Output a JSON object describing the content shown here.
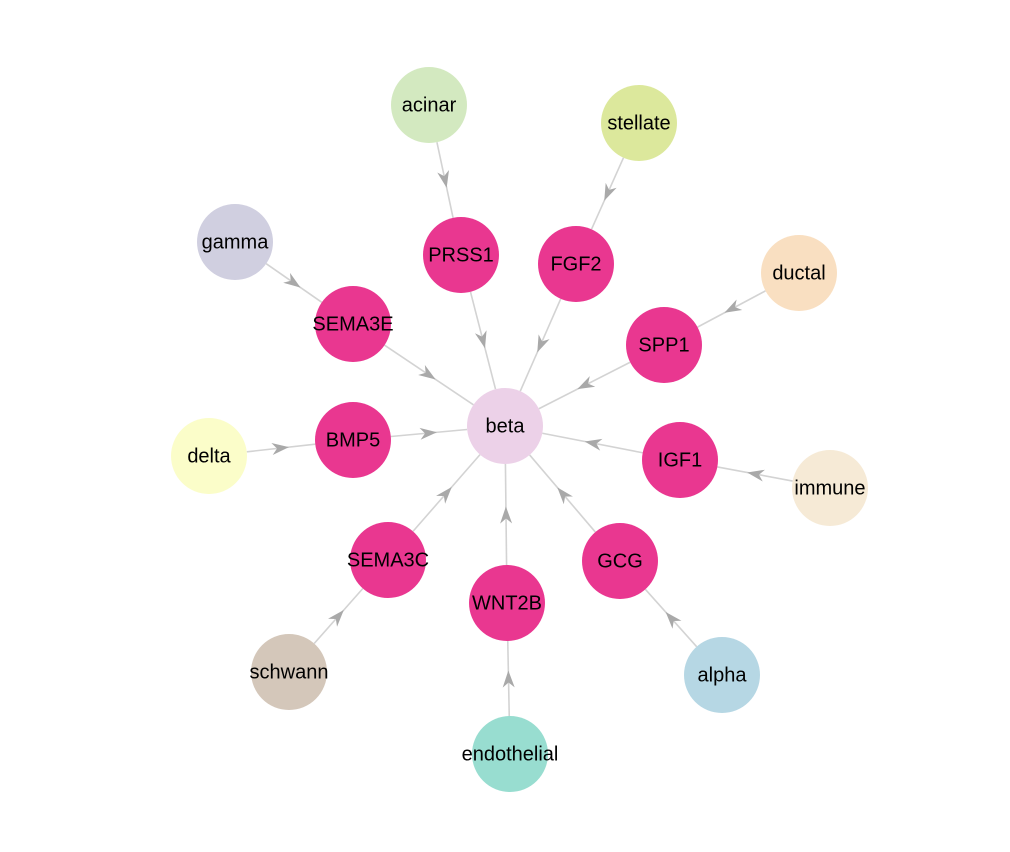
{
  "graph": {
    "type": "cell-communication-network",
    "center": "beta",
    "nodes": [
      {
        "id": "beta",
        "label": "beta",
        "kind": "cell",
        "color": "#ecd1e8"
      },
      {
        "id": "acinar",
        "label": "acinar",
        "kind": "cell",
        "color": "#d3e9c0"
      },
      {
        "id": "stellate",
        "label": "stellate",
        "kind": "cell",
        "color": "#dce89c"
      },
      {
        "id": "ductal",
        "label": "ductal",
        "kind": "cell",
        "color": "#f9dfc1"
      },
      {
        "id": "immune",
        "label": "immune",
        "kind": "cell",
        "color": "#f6ead6"
      },
      {
        "id": "alpha",
        "label": "alpha",
        "kind": "cell",
        "color": "#b6d7e4"
      },
      {
        "id": "endothelial",
        "label": "endothelial",
        "kind": "cell",
        "color": "#98ddd0"
      },
      {
        "id": "schwann",
        "label": "schwann",
        "kind": "cell",
        "color": "#d4c7ba"
      },
      {
        "id": "delta",
        "label": "delta",
        "kind": "cell",
        "color": "#fbfdc9"
      },
      {
        "id": "gamma",
        "label": "gamma",
        "kind": "cell",
        "color": "#d0cfe0"
      },
      {
        "id": "PRSS1",
        "label": "PRSS1",
        "kind": "ligand",
        "color": "#e93790"
      },
      {
        "id": "FGF2",
        "label": "FGF2",
        "kind": "ligand",
        "color": "#e93790"
      },
      {
        "id": "SPP1",
        "label": "SPP1",
        "kind": "ligand",
        "color": "#e93790"
      },
      {
        "id": "IGF1",
        "label": "IGF1",
        "kind": "ligand",
        "color": "#e93790"
      },
      {
        "id": "GCG",
        "label": "GCG",
        "kind": "ligand",
        "color": "#e93790"
      },
      {
        "id": "WNT2B",
        "label": "WNT2B",
        "kind": "ligand",
        "color": "#e93790"
      },
      {
        "id": "SEMA3C",
        "label": "SEMA3C",
        "kind": "ligand",
        "color": "#e93790"
      },
      {
        "id": "BMP5",
        "label": "BMP5",
        "kind": "ligand",
        "color": "#e93790"
      },
      {
        "id": "SEMA3E",
        "label": "SEMA3E",
        "kind": "ligand",
        "color": "#e93790"
      }
    ],
    "edges": [
      {
        "source": "acinar",
        "target": "PRSS1"
      },
      {
        "source": "PRSS1",
        "target": "beta"
      },
      {
        "source": "stellate",
        "target": "FGF2"
      },
      {
        "source": "FGF2",
        "target": "beta"
      },
      {
        "source": "ductal",
        "target": "SPP1"
      },
      {
        "source": "SPP1",
        "target": "beta"
      },
      {
        "source": "immune",
        "target": "IGF1"
      },
      {
        "source": "IGF1",
        "target": "beta"
      },
      {
        "source": "alpha",
        "target": "GCG"
      },
      {
        "source": "GCG",
        "target": "beta"
      },
      {
        "source": "endothelial",
        "target": "WNT2B"
      },
      {
        "source": "WNT2B",
        "target": "beta"
      },
      {
        "source": "schwann",
        "target": "SEMA3C"
      },
      {
        "source": "SEMA3C",
        "target": "beta"
      },
      {
        "source": "delta",
        "target": "BMP5"
      },
      {
        "source": "BMP5",
        "target": "beta"
      },
      {
        "source": "gamma",
        "target": "SEMA3E"
      },
      {
        "source": "SEMA3E",
        "target": "beta"
      }
    ]
  }
}
